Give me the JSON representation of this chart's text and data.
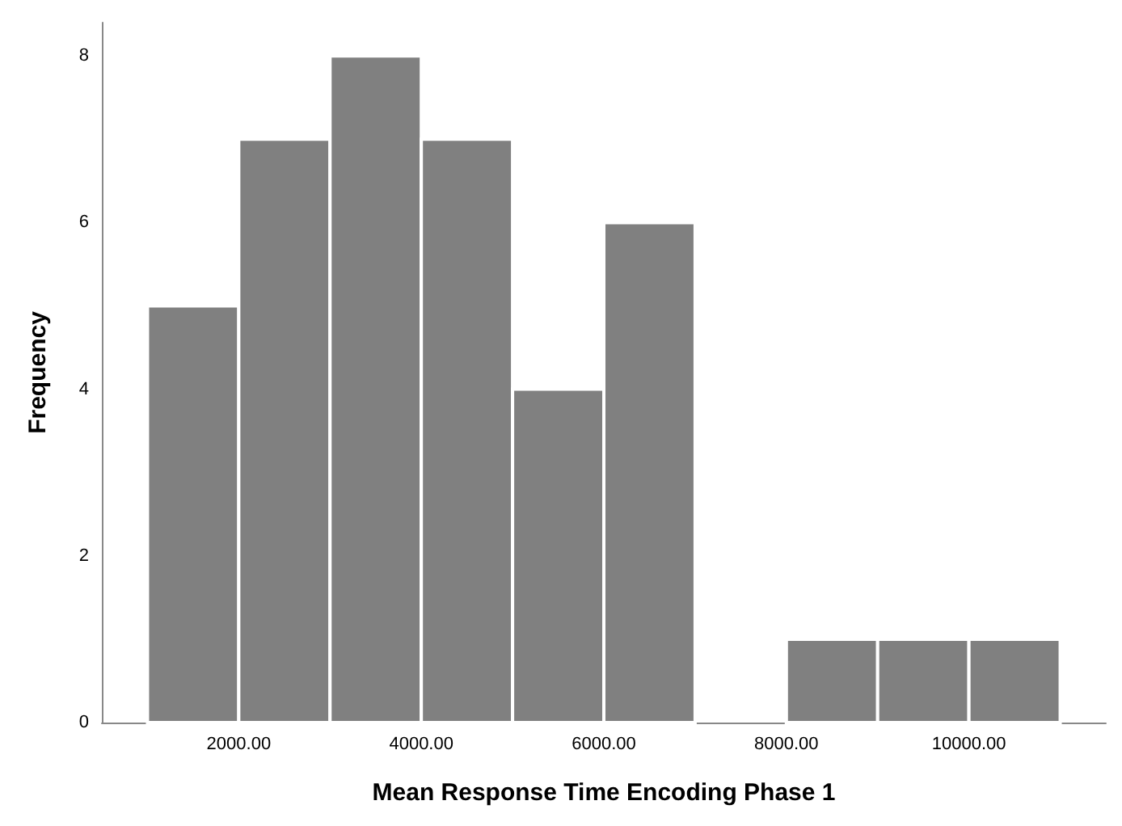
{
  "chart_data": {
    "type": "histogram",
    "xlabel": "Mean Response Time Encoding Phase 1",
    "ylabel": "Frequency",
    "bins": [
      1000,
      2000,
      3000,
      4000,
      5000,
      6000,
      7000,
      8000,
      9000,
      10000,
      11000
    ],
    "values": [
      5,
      7,
      8,
      7,
      4,
      6,
      0,
      1,
      1,
      1
    ],
    "color": "#808080",
    "xlim": [
      500,
      11500
    ],
    "xticks": [
      {
        "value": 2000,
        "label": "2000.00"
      },
      {
        "value": 4000,
        "label": "4000.00"
      },
      {
        "value": 6000,
        "label": "6000.00"
      },
      {
        "value": 8000,
        "label": "8000.00"
      },
      {
        "value": 10000,
        "label": "10000.00"
      }
    ],
    "ylim": [
      0,
      8.4
    ],
    "yticks": [
      0,
      2,
      4,
      6,
      8
    ],
    "grid": false
  }
}
